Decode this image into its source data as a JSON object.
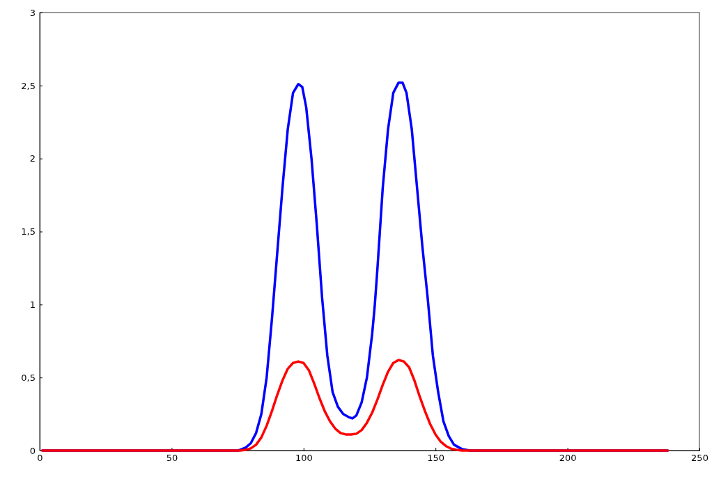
{
  "chart_data": {
    "type": "line",
    "xlim": [
      0,
      250
    ],
    "ylim": [
      0,
      3
    ],
    "xticks": [
      0,
      50,
      100,
      150,
      200,
      250
    ],
    "yticks": [
      0,
      {
        "value": 0.5,
        "label": "0,5"
      },
      1,
      {
        "value": 1.5,
        "label": "1,5"
      },
      2,
      {
        "value": 2.5,
        "label": "2,5"
      },
      3
    ],
    "series": [
      {
        "color": "#0000ff",
        "x": [
          1,
          75,
          76,
          78,
          80,
          82,
          84,
          86,
          88,
          90,
          92,
          94,
          96,
          98,
          99.5,
          101,
          103,
          105,
          107,
          109,
          111,
          113,
          115,
          117,
          118.5,
          120,
          122,
          124,
          126,
          127,
          128,
          130,
          132,
          134,
          136,
          137.5,
          139,
          141,
          143,
          145,
          147,
          149,
          151,
          153,
          155,
          157,
          160,
          163,
          238
        ],
        "values": [
          0,
          0,
          0.005,
          0.02,
          0.05,
          0.12,
          0.25,
          0.5,
          0.9,
          1.35,
          1.8,
          2.2,
          2.45,
          2.51,
          2.49,
          2.35,
          2.0,
          1.55,
          1.05,
          0.65,
          0.4,
          0.3,
          0.25,
          0.23,
          0.22,
          0.24,
          0.33,
          0.5,
          0.8,
          1.0,
          1.25,
          1.8,
          2.2,
          2.45,
          2.52,
          2.52,
          2.45,
          2.2,
          1.8,
          1.4,
          1.05,
          0.65,
          0.4,
          0.2,
          0.1,
          0.04,
          0.01,
          0,
          0
        ]
      },
      {
        "color": "#ff0000",
        "x": [
          1,
          76,
          78,
          80,
          82,
          84,
          86,
          88,
          90,
          92,
          94,
          96,
          98,
          100,
          102,
          104,
          106,
          108,
          110,
          112,
          114,
          116,
          118,
          120,
          122,
          124,
          126,
          128,
          130,
          132,
          134,
          136,
          138,
          140,
          142,
          144,
          146,
          148,
          150,
          152,
          154,
          156,
          158,
          160,
          238
        ],
        "values": [
          0,
          0,
          0.005,
          0.015,
          0.04,
          0.09,
          0.17,
          0.27,
          0.38,
          0.48,
          0.56,
          0.6,
          0.61,
          0.6,
          0.55,
          0.46,
          0.36,
          0.27,
          0.2,
          0.15,
          0.12,
          0.11,
          0.11,
          0.115,
          0.14,
          0.19,
          0.26,
          0.35,
          0.45,
          0.54,
          0.6,
          0.62,
          0.61,
          0.57,
          0.48,
          0.37,
          0.27,
          0.18,
          0.11,
          0.06,
          0.03,
          0.012,
          0.005,
          0,
          0
        ]
      }
    ]
  }
}
